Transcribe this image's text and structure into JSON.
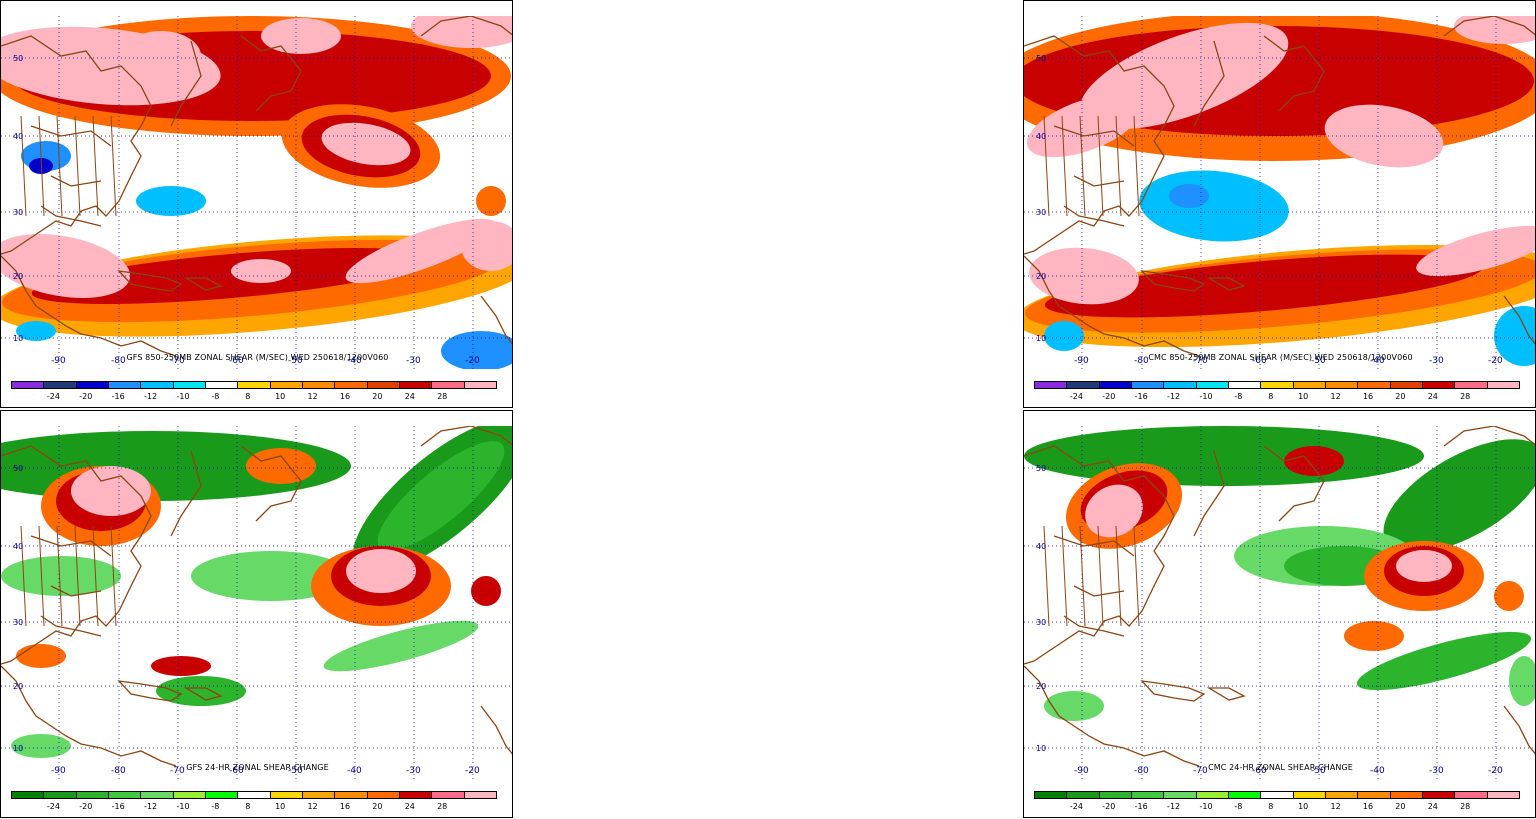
{
  "panels": [
    {
      "id": "gfs-shear",
      "title": "GFS 850-250MB ZONAL SHEAR (M/SEC) WED 250618/1200V060",
      "kind": "shear",
      "colorbar": {
        "colors": [
          "#8a2be2",
          "#1e3c78",
          "#0000cd",
          "#1e90ff",
          "#00bfff",
          "#00e5ee",
          "#ffffff",
          "#ffd700",
          "#ffa500",
          "#ff8c00",
          "#ff6a00",
          "#e04000",
          "#c80000",
          "#ff6a88",
          "#ffb6c1"
        ],
        "labels": [
          "-24",
          "-20",
          "-16",
          "-12",
          "-10",
          "-8",
          "8",
          "10",
          "12",
          "16",
          "20",
          "24",
          "28"
        ]
      }
    },
    {
      "id": "cmc-shear",
      "title": "CMC 850-250MB ZONAL SHEAR (M/SEC) WED 250618/1200V060",
      "kind": "shear",
      "colorbar": {
        "colors": [
          "#8a2be2",
          "#1e3c78",
          "#0000cd",
          "#1e90ff",
          "#00bfff",
          "#00e5ee",
          "#ffffff",
          "#ffd700",
          "#ffa500",
          "#ff8c00",
          "#ff6a00",
          "#e04000",
          "#c80000",
          "#ff6a88",
          "#ffb6c1"
        ],
        "labels": [
          "-24",
          "-20",
          "-16",
          "-12",
          "-10",
          "-8",
          "8",
          "10",
          "12",
          "16",
          "20",
          "24",
          "28"
        ]
      }
    },
    {
      "id": "gfs-change",
      "title": "GFS 24-HR ZONAL SHEAR CHANGE",
      "kind": "change",
      "colorbar": {
        "colors": [
          "#008000",
          "#1a9a1a",
          "#2db42d",
          "#40c840",
          "#66d966",
          "#99ee33",
          "#00ff00",
          "#ffffff",
          "#ffd700",
          "#ffa500",
          "#ff8c00",
          "#ff6a00",
          "#c80000",
          "#ff6a88",
          "#ffb6c1"
        ],
        "labels": [
          "-24",
          "-20",
          "-16",
          "-12",
          "-10",
          "-8",
          "8",
          "10",
          "12",
          "16",
          "20",
          "24",
          "28"
        ]
      }
    },
    {
      "id": "cmc-change",
      "title": "CMC 24-HR ZONAL SHEAR CHANGE",
      "kind": "change",
      "colorbar": {
        "colors": [
          "#008000",
          "#1a9a1a",
          "#2db42d",
          "#40c840",
          "#66d966",
          "#99ee33",
          "#00ff00",
          "#ffffff",
          "#ffd700",
          "#ffa500",
          "#ff8c00",
          "#ff6a00",
          "#c80000",
          "#ff6a88",
          "#ffb6c1"
        ],
        "labels": [
          "-24",
          "-20",
          "-16",
          "-12",
          "-10",
          "-8",
          "8",
          "10",
          "12",
          "16",
          "20",
          "24",
          "28"
        ]
      }
    }
  ],
  "latitudes": [
    "50",
    "40",
    "30",
    "20",
    "10"
  ],
  "longitudes": [
    "-90",
    "-80",
    "-70",
    "-60",
    "-50",
    "-40",
    "-30",
    "-20"
  ]
}
